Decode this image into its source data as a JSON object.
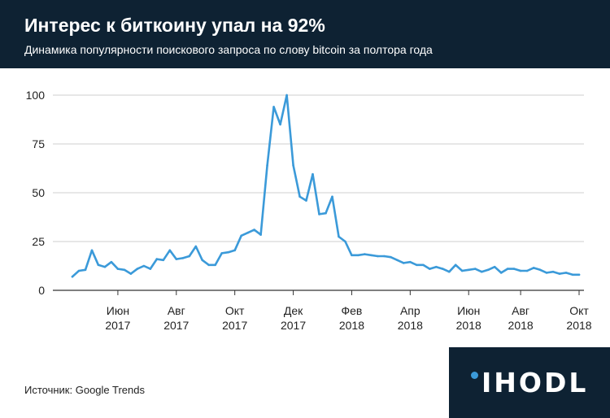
{
  "header": {
    "title": "Интерес к биткоину упал на 92%",
    "subtitle": "Динамика популярности поискового запроса по слову bitcoin за полтора года"
  },
  "footer": {
    "source": "Источник: Google Trends"
  },
  "logo": {
    "text": "IHODL",
    "dot_color": "#3b9ad9"
  },
  "colors": {
    "header_bg": "#0e2233",
    "line": "#3b9ad9",
    "grid": "#cfcfcf"
  },
  "chart_data": {
    "type": "line",
    "title": "",
    "xlabel": "",
    "ylabel": "",
    "ylim": [
      0,
      100
    ],
    "yticks": [
      0,
      25,
      50,
      75,
      100
    ],
    "grid": true,
    "x_ticks": [
      {
        "month": "Июн",
        "year": "2017",
        "week": 7
      },
      {
        "month": "Авг",
        "year": "2017",
        "week": 16
      },
      {
        "month": "Окт",
        "year": "2017",
        "week": 25
      },
      {
        "month": "Дек",
        "year": "2017",
        "week": 34
      },
      {
        "month": "Фев",
        "year": "2018",
        "week": 43
      },
      {
        "month": "Апр",
        "year": "2018",
        "week": 52
      },
      {
        "month": "Июн",
        "year": "2018",
        "week": 61
      },
      {
        "month": "Авг",
        "year": "2018",
        "week": 69
      },
      {
        "month": "Окт",
        "year": "2018",
        "week": 78
      }
    ],
    "series": [
      {
        "values": [
          7,
          10,
          10.5,
          20.5,
          13,
          12,
          14.5,
          11,
          10.5,
          8.5,
          11,
          12.5,
          11,
          16,
          15.5,
          20.5,
          16,
          16.5,
          17.5,
          22.5,
          15.5,
          13,
          13,
          19,
          19.5,
          20.5,
          28,
          29.5,
          31,
          28.5,
          64,
          94,
          85,
          100,
          64,
          48,
          46,
          59.5,
          39,
          39.5,
          48,
          27.5,
          25,
          18,
          18,
          18.5,
          18,
          17.5,
          17.5,
          17,
          15.5,
          14,
          14.5,
          13,
          13,
          11,
          12,
          11,
          9.5,
          13,
          10,
          10.5,
          11,
          9.5,
          10.5,
          12,
          9,
          11,
          11,
          10,
          10,
          11.5,
          10.5,
          9,
          9.5,
          8.5,
          9,
          8,
          8
        ]
      }
    ]
  }
}
